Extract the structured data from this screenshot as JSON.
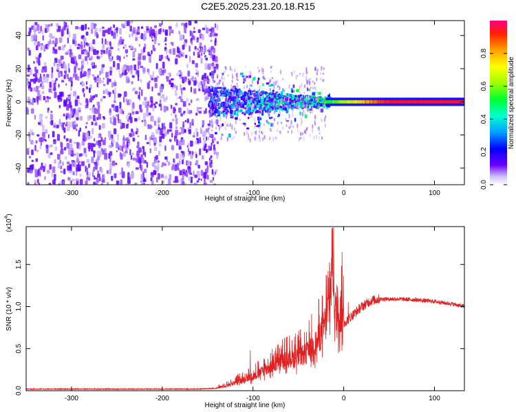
{
  "title": "C2E5.2025.231.20.18.R15",
  "chart_data": [
    {
      "type": "heatmap",
      "xlabel": "Height of straight line (km)",
      "ylabel": "Frequency (Hz)",
      "xlim": [
        -350,
        133
      ],
      "ylim": [
        -50,
        49
      ],
      "xticks": [
        -300,
        -200,
        -100,
        0,
        100
      ],
      "xtick_labels": [
        "-300",
        "-200",
        "-100",
        "0",
        "100"
      ],
      "yticks": [
        -40,
        -20,
        0,
        20,
        40
      ],
      "ytick_labels": [
        "-40",
        "-20",
        "0",
        "20",
        "40"
      ],
      "colorbar": {
        "label": "Normalized spectral amplitude",
        "range": [
          0,
          1
        ],
        "ticks": [
          0.0,
          0.2,
          0.4,
          0.6,
          0.8
        ],
        "tick_labels": [
          "0.0",
          "0.2",
          "0.4",
          "0.6",
          "0.8"
        ],
        "colormap": "rainbow"
      },
      "regions": [
        {
          "x": [
            -350,
            -150
          ],
          "freq_spread_hz": 49,
          "amplitude": 0.05,
          "description_color": "#8040ff"
        },
        {
          "x": [
            -150,
            -20
          ],
          "freq_spread_hz": 8,
          "amplitude": 0.3
        },
        {
          "x": [
            -20,
            133
          ],
          "freq_spread_hz": 1,
          "amplitude": 0.9
        }
      ]
    },
    {
      "type": "line",
      "xlabel": "Height of straight line (km)",
      "ylabel": "SNR (10 * v/v)",
      "y_multiplier": "(x10",
      "y_multiplier_exp": "4",
      "xlim": [
        -350,
        133
      ],
      "ylim": [
        0,
        1.95
      ],
      "xticks": [
        -300,
        -200,
        -100,
        0,
        100
      ],
      "xtick_labels": [
        "-300",
        "-200",
        "-100",
        "0",
        "100"
      ],
      "yticks": [
        0.0,
        0.5,
        1.0,
        1.5
      ],
      "ytick_labels": [
        "0.0",
        "0.5",
        "1.0",
        "1.5"
      ],
      "color": "#e02020",
      "series": [
        {
          "x": [
            -350,
            -300,
            -250,
            -200,
            -160,
            -140,
            -120,
            -110,
            -100,
            -90,
            -80,
            -70,
            -60,
            -50,
            -40,
            -30,
            -25,
            -20,
            -15,
            -12,
            -10,
            -8,
            -5,
            0,
            5,
            10,
            20,
            30,
            40,
            60,
            80,
            100,
            120,
            133
          ],
          "y": [
            0.02,
            0.02,
            0.02,
            0.02,
            0.02,
            0.03,
            0.08,
            0.12,
            0.15,
            0.2,
            0.25,
            0.3,
            0.33,
            0.35,
            0.4,
            0.5,
            0.6,
            0.7,
            0.95,
            1.4,
            0.9,
            0.75,
            0.8,
            0.8,
            0.85,
            0.9,
            1.0,
            1.07,
            1.09,
            1.09,
            1.08,
            1.06,
            1.03,
            1.0
          ],
          "spikes": [
            {
              "x": -117,
              "y": 0.2
            },
            {
              "x": -103,
              "y": 0.48
            },
            {
              "x": -88,
              "y": 0.38
            },
            {
              "x": -72,
              "y": 0.55
            },
            {
              "x": -57,
              "y": 0.6
            },
            {
              "x": -41,
              "y": 0.7
            },
            {
              "x": -27,
              "y": 0.9
            },
            {
              "x": -21,
              "y": 0.98
            },
            {
              "x": -17,
              "y": 1.2
            },
            {
              "x": -13,
              "y": 1.93
            },
            {
              "x": -9,
              "y": 1.02
            },
            {
              "x": 5,
              "y": 1.05
            }
          ]
        }
      ]
    }
  ]
}
